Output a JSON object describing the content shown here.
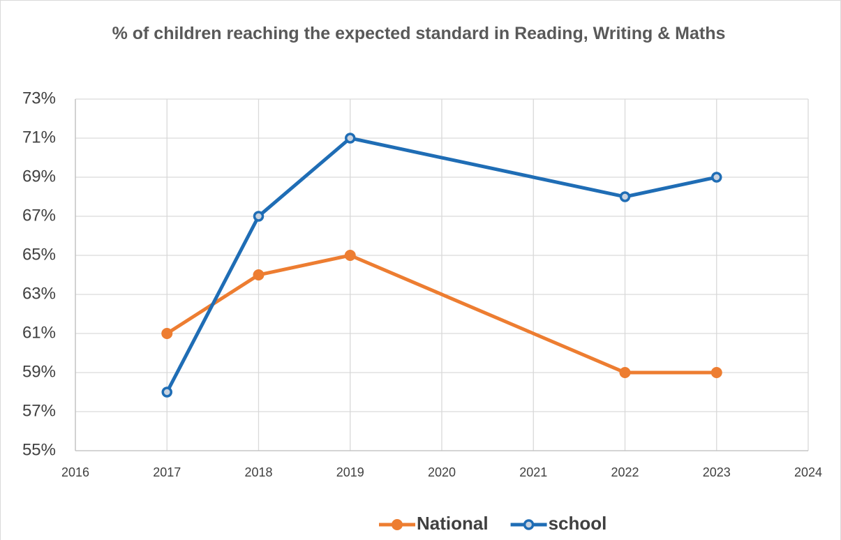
{
  "chart_data": {
    "type": "line",
    "title": "% of children reaching the expected standard in Reading, Writing & Maths",
    "x": [
      2017,
      2018,
      2019,
      2022,
      2023
    ],
    "series": [
      {
        "name": "National",
        "color": "#ed7d31",
        "marker": "filled",
        "values": [
          61,
          64,
          65,
          59,
          59
        ]
      },
      {
        "name": "school",
        "color": "#1f6db5",
        "marker": "hollow",
        "values": [
          58,
          67,
          71,
          68,
          69
        ]
      }
    ],
    "xlim": [
      2016,
      2024
    ],
    "xticks": [
      2016,
      2017,
      2018,
      2019,
      2020,
      2021,
      2022,
      2023,
      2024
    ],
    "ylim": [
      55,
      73
    ],
    "yticks": [
      {
        "value": 55,
        "label": "55%"
      },
      {
        "value": 57,
        "label": "57%"
      },
      {
        "value": 59,
        "label": "59%"
      },
      {
        "value": 61,
        "label": "61%"
      },
      {
        "value": 63,
        "label": "63%"
      },
      {
        "value": 65,
        "label": "65%"
      },
      {
        "value": 67,
        "label": "67%"
      },
      {
        "value": 69,
        "label": "69%"
      },
      {
        "value": 71,
        "label": "71%"
      },
      {
        "value": 73,
        "label": "73%"
      }
    ],
    "grid": true,
    "legend": "bottom"
  }
}
